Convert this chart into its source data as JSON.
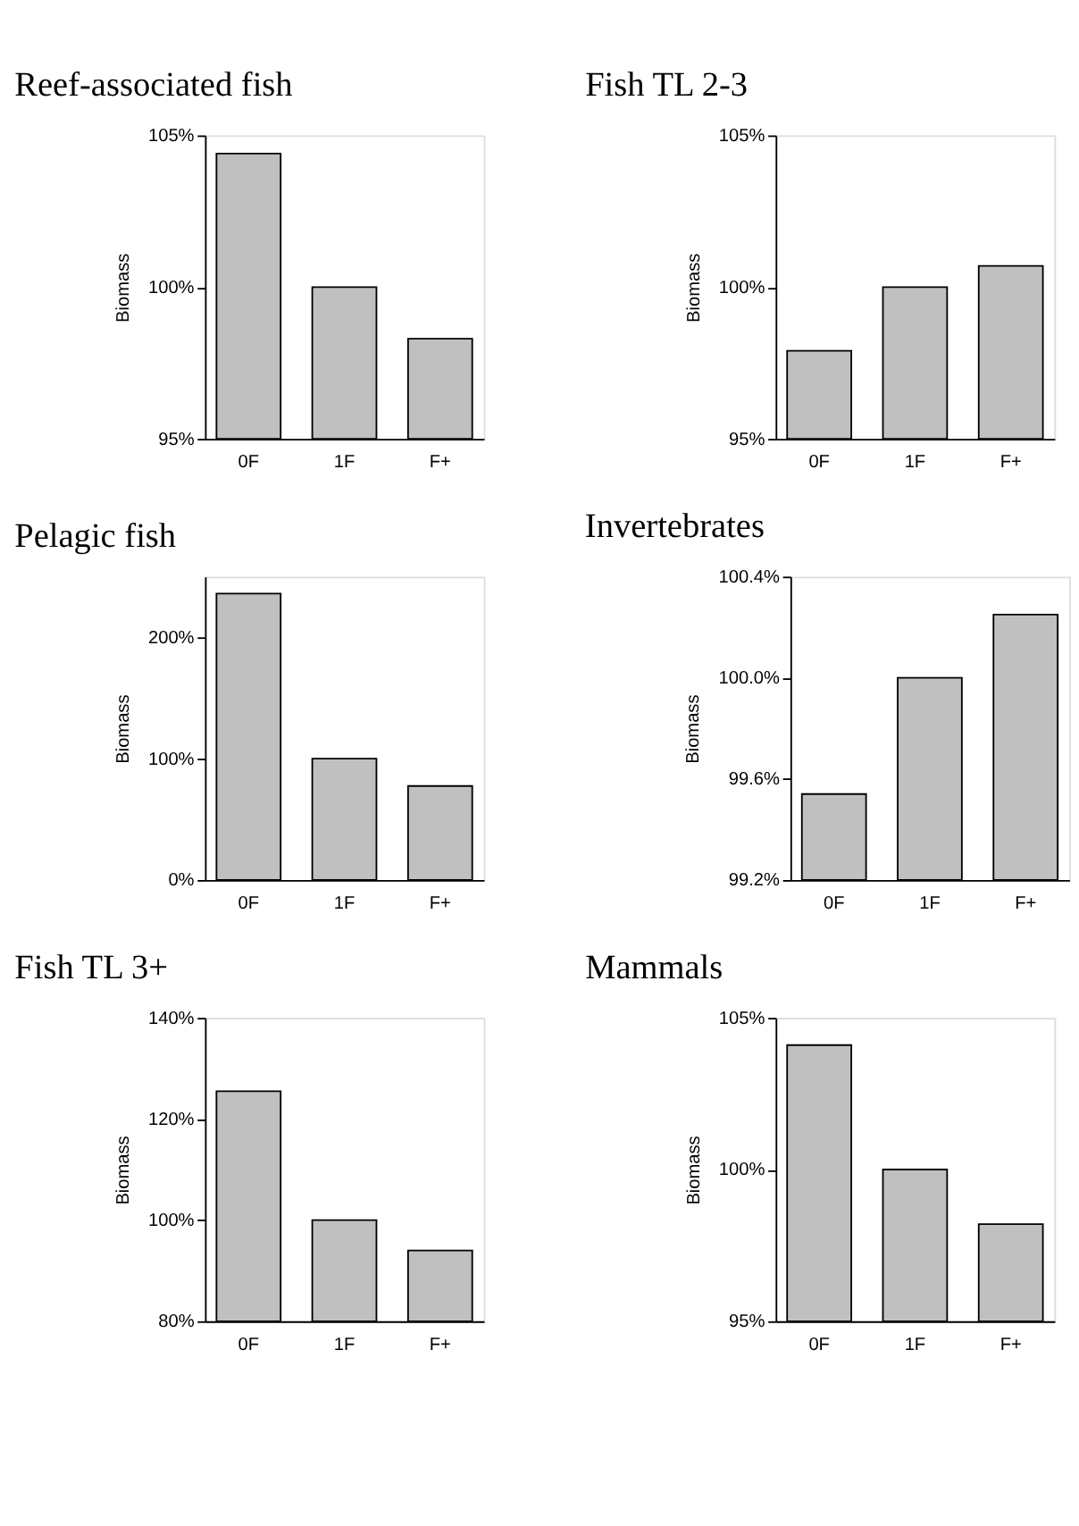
{
  "chart_data": [
    {
      "type": "bar",
      "title": "Reef-associated fish",
      "ylabel": "Biomass",
      "categories": [
        "0F",
        "1F",
        "F+"
      ],
      "values": [
        104.4,
        100.0,
        98.3
      ],
      "color": "#c0c0c0",
      "ylim": [
        95,
        105
      ],
      "yticks": [
        {
          "value": 95,
          "label": "95%"
        },
        {
          "value": 100,
          "label": "100%"
        },
        {
          "value": 105,
          "label": "105%"
        }
      ],
      "grid": false
    },
    {
      "type": "bar",
      "title": "Fish TL 2-3",
      "ylabel": "Biomass",
      "categories": [
        "0F",
        "1F",
        "F+"
      ],
      "values": [
        97.9,
        100.0,
        100.7
      ],
      "color": "#c0c0c0",
      "ylim": [
        95,
        105
      ],
      "yticks": [
        {
          "value": 95,
          "label": "95%"
        },
        {
          "value": 100,
          "label": "100%"
        },
        {
          "value": 105,
          "label": "105%"
        }
      ],
      "grid": false
    },
    {
      "type": "bar",
      "title": "Pelagic fish",
      "ylabel": "Biomass",
      "categories": [
        "0F",
        "1F",
        "F+"
      ],
      "values": [
        236,
        100,
        77.5
      ],
      "color": "#c0c0c0",
      "ylim": [
        0,
        250
      ],
      "yticks": [
        {
          "value": 0,
          "label": "0%"
        },
        {
          "value": 100,
          "label": "100%"
        },
        {
          "value": 200,
          "label": "200%"
        }
      ],
      "grid": false
    },
    {
      "type": "bar",
      "title": "Invertebrates",
      "ylabel": "Biomass",
      "categories": [
        "0F",
        "1F",
        "F+"
      ],
      "values": [
        99.54,
        100.0,
        100.25
      ],
      "color": "#c0c0c0",
      "ylim": [
        99.2,
        100.4
      ],
      "yticks": [
        {
          "value": 99.2,
          "label": "99.2%"
        },
        {
          "value": 99.6,
          "label": "99.6%"
        },
        {
          "value": 100.0,
          "label": "100.0%"
        },
        {
          "value": 100.4,
          "label": "100.4%"
        }
      ],
      "grid": false
    },
    {
      "type": "bar",
      "title": "Fish TL 3+",
      "ylabel": "Biomass",
      "categories": [
        "0F",
        "1F",
        "F+"
      ],
      "values": [
        125.5,
        100.0,
        94
      ],
      "color": "#c0c0c0",
      "ylim": [
        80,
        140
      ],
      "yticks": [
        {
          "value": 80,
          "label": "80%"
        },
        {
          "value": 100,
          "label": "100%"
        },
        {
          "value": 120,
          "label": "120%"
        },
        {
          "value": 140,
          "label": "140%"
        }
      ],
      "grid": false
    },
    {
      "type": "bar",
      "title": "Mammals",
      "ylabel": "Biomass",
      "categories": [
        "0F",
        "1F",
        "F+"
      ],
      "values": [
        104.1,
        100.0,
        98.2
      ],
      "color": "#c0c0c0",
      "ylim": [
        95,
        105
      ],
      "yticks": [
        {
          "value": 95,
          "label": "95%"
        },
        {
          "value": 100,
          "label": "100%"
        },
        {
          "value": 105,
          "label": "105%"
        }
      ],
      "grid": false
    }
  ]
}
